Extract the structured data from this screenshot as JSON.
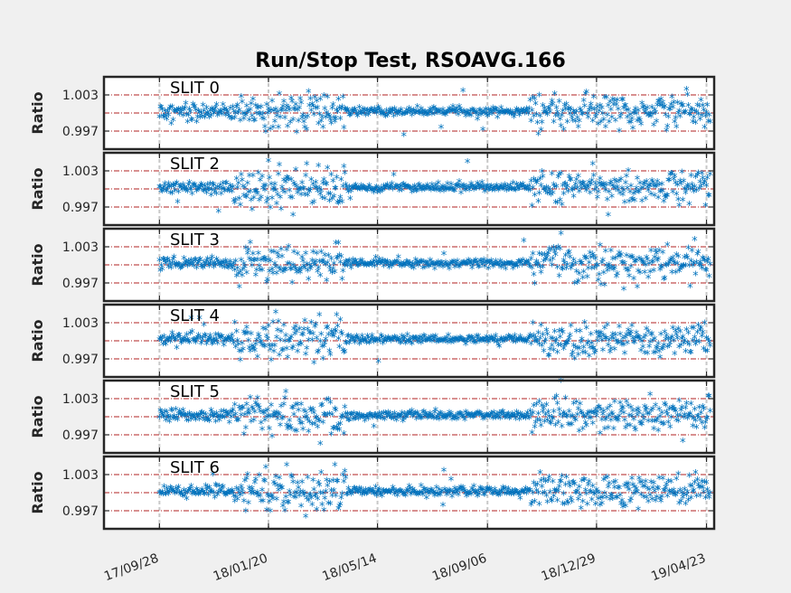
{
  "chart_data": {
    "type": "scatter",
    "title": "Run/Stop Test, RSOAVG.166",
    "ylabel": "Ratio",
    "xlim": [
      "2017-08-01",
      "2019-05-01"
    ],
    "x_ticks": [
      "2017-09-28",
      "2018-01-20",
      "2018-05-14",
      "2018-09-06",
      "2018-12-29",
      "2019-04-23"
    ],
    "x_tick_labels": [
      "17/09/28",
      "18/01/20",
      "18/05/14",
      "18/09/06",
      "18/12/29",
      "19/04/23"
    ],
    "ylim": [
      0.994,
      1.006
    ],
    "y_ticks": [
      0.997,
      1.003
    ],
    "y_tick_labels": [
      "0.997",
      "1.003"
    ],
    "reference_lines": [
      0.997,
      1.0,
      1.003
    ],
    "data_start": "2017-09-28",
    "data_end": "2019-04-27",
    "marker": "*",
    "marker_color": "#0072bd",
    "reference_line_color": "#b22222",
    "grid": true,
    "panels": [
      {
        "label": "SLIT 0"
      },
      {
        "label": "SLIT 2"
      },
      {
        "label": "SLIT 3"
      },
      {
        "label": "SLIT 4"
      },
      {
        "label": "SLIT 5"
      },
      {
        "label": "SLIT 6"
      }
    ]
  }
}
